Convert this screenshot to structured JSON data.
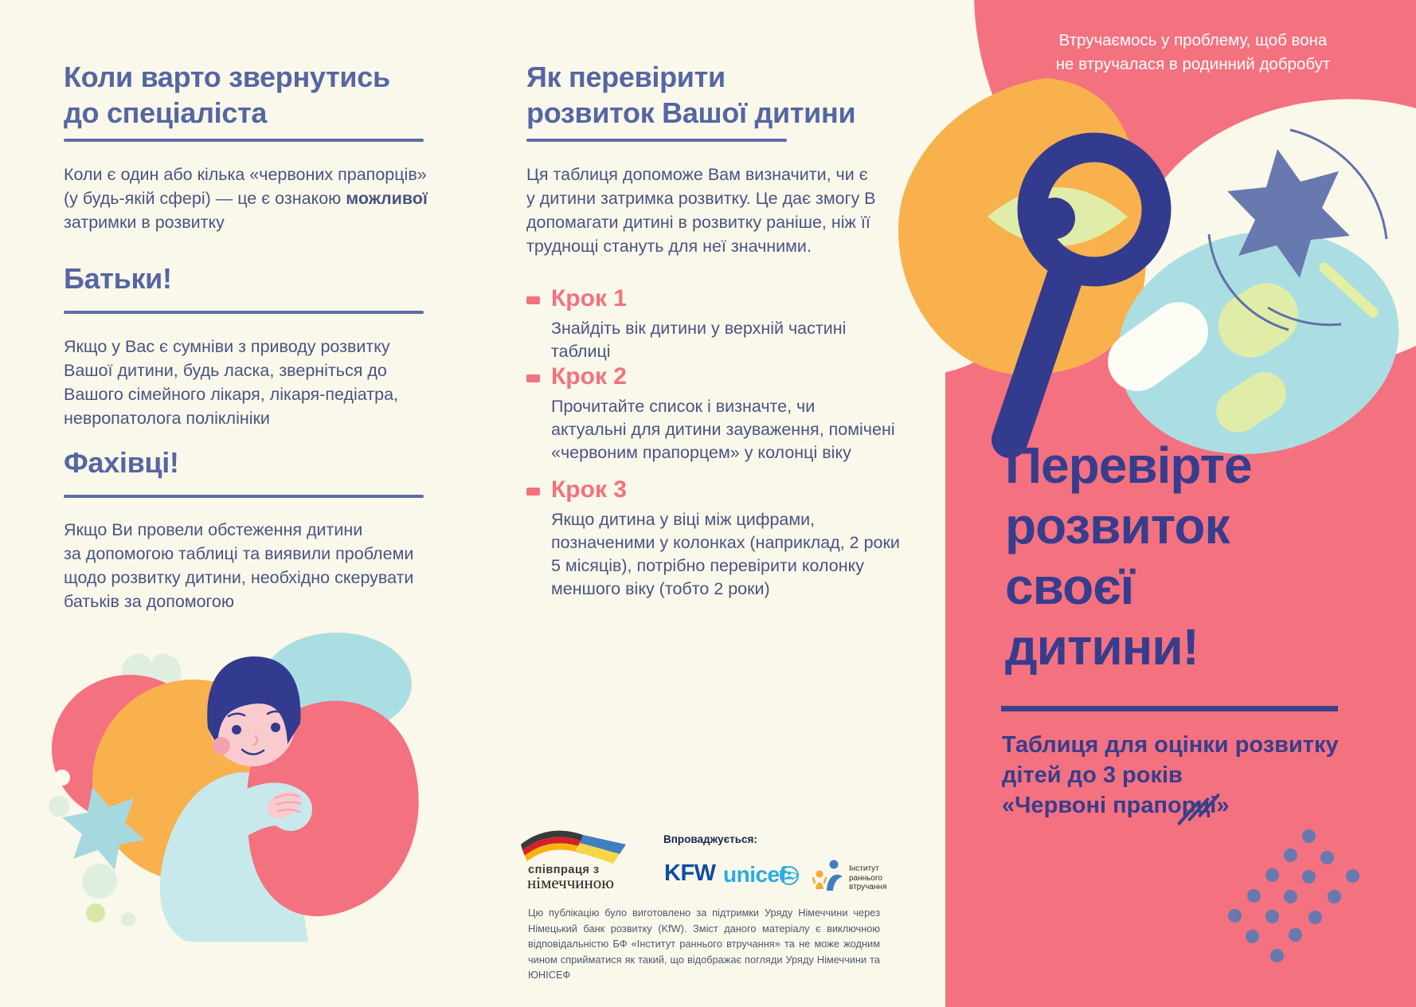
{
  "palette": {
    "cream": "#FAF8EA",
    "pink": "#F4717F",
    "navy": "#373D8C",
    "periwinkle": "#5566A2",
    "body_text": "#4A5383",
    "orange": "#F8B14D",
    "teal": "#ABDEE2",
    "lime": "#E0EDA8",
    "slate_blue": "#6779AE",
    "kfw_blue": "#0C4DA2",
    "unicef_blue": "#29ABE2"
  },
  "left": {
    "title": "Коли варто звернутись\nдо спеціаліста",
    "intro_pre": "Коли є один або кілька «червоних прапорців»\n(у будь-якій сфері) — це є ознакою ",
    "intro_bold": "можливої",
    "intro_post": "\nзатримки в розвитку",
    "sections": [
      {
        "heading": "Батьки!",
        "body": "Якщо у Вас є сумніви з приводу розвитку\nВашої дитини, будь ласка, зверніться до\nВашого сімейного лікаря, лікаря-педіатра,\nневропатолога поліклініки"
      },
      {
        "heading": "Фахівці!",
        "body": "Якщо Ви провели обстеження дитини\nза допомогою таблиці та виявили проблеми\nщодо розвитку дитини, необхідно скерувати\nбатьків за допомогою"
      }
    ]
  },
  "middle": {
    "title": "Як перевірити\nрозвиток Вашої дитини",
    "intro": "Ця таблиця допоможе Вам визначити, чи є\nу дитини затримка розвитку. Це дає змогу Вам\nдопомагати дитині в розвитку раніше, ніж її\nтруднощі стануть для неї значними.",
    "steps": [
      {
        "label": "Крок 1",
        "text": "Знайдіть вік дитини у верхній частині таблиці"
      },
      {
        "label": "Крок 2",
        "text": "Прочитайте список і визначте, чи\nактуальні для дитини зауваження, помічені\n«червоним прапорцем» у колонці віку"
      },
      {
        "label": "Крок 3",
        "text": "Якщо дитина у віці між цифрами,\nпозначеними у колонках (наприклад, 2 роки\n5 місяців), потрібно перевірити колонку\nменшого віку (тобто 2 роки)"
      }
    ],
    "implemented_by_label": "Впроваджується:",
    "logos": {
      "germany_coop_line1": "співпраця з",
      "germany_coop_line2": "німеччиною",
      "kfw": "KFW",
      "unicef": "unicef",
      "institute": "Інститут\nраннього\nвтручання"
    },
    "disclaimer": "Цю публікацію було виготовлено за підтримки Уряду Німеччини через Німецький банк розвитку (KfW). Зміст даного матеріалу є виключною відповідальністю БФ «Інститут раннього втручання» та не може жодним чином сприйматися як такий, що відображає погляди Уряду Німеччини та ЮНІСЕФ"
  },
  "right": {
    "tagline": "Втручаємось у проблему, щоб вона\nне втручалася в родинний добробут",
    "title": "Перевірте\nрозвиток\nсвоєї\nдитини!",
    "subtitle": "Таблиця для оцінки розвитку\nдітей до 3 років\n«Червоні прапорці»"
  }
}
